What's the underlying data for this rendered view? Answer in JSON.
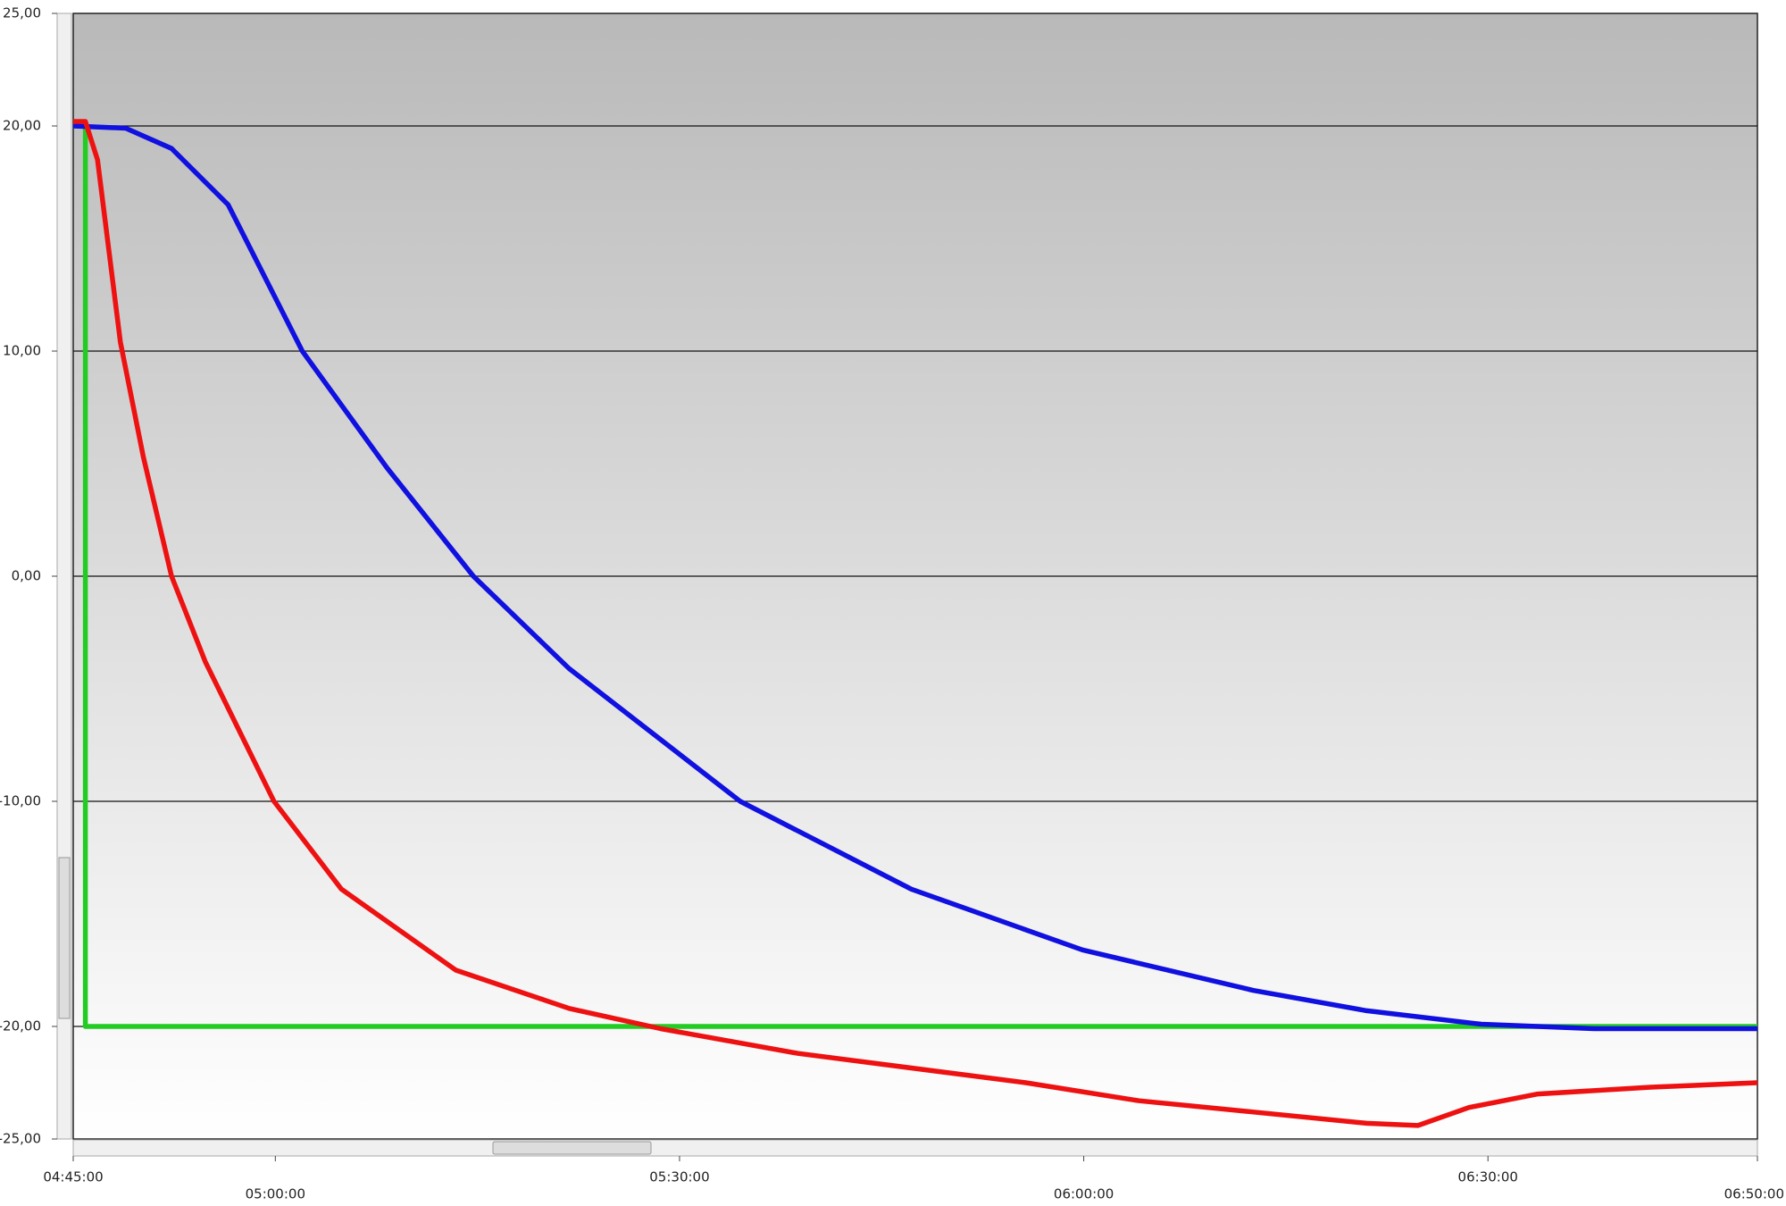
{
  "chart_data": {
    "type": "line",
    "xlim": [
      285,
      410
    ],
    "xticks": [
      {
        "value": 285,
        "label": "04:45:00"
      },
      {
        "value": 300,
        "label": "05:00:00"
      },
      {
        "value": 330,
        "label": "05:30:00"
      },
      {
        "value": 360,
        "label": "06:00:00"
      },
      {
        "value": 390,
        "label": "06:30:00"
      },
      {
        "value": 410,
        "label": "06:50:00"
      }
    ],
    "ylim": [
      -25,
      25
    ],
    "yticks": [
      {
        "value": 25,
        "label": "25,00"
      },
      {
        "value": 20,
        "label": "20,00"
      },
      {
        "value": 10,
        "label": "10,00"
      },
      {
        "value": 0,
        "label": "0,00"
      },
      {
        "value": -10,
        "label": "-10,00"
      },
      {
        "value": -20,
        "label": "-20,00"
      },
      {
        "value": -25,
        "label": "-25,00"
      }
    ],
    "grid": true,
    "series": [
      {
        "color": "#22cc22",
        "x": [
          285,
          285.9,
          285.9,
          410
        ],
        "values": [
          20,
          20,
          -20,
          -20
        ]
      },
      {
        "color": "#1010e0",
        "x": [
          285,
          288.9,
          292.3,
          296.5,
          302.0,
          308.3,
          314.7,
          321.8,
          334.5,
          347.2,
          359.9,
          372.6,
          381.0,
          389.5,
          397.9,
          410
        ],
        "values": [
          20,
          19.9,
          19.0,
          16.5,
          10,
          4.8,
          0,
          -4.1,
          -10,
          -13.9,
          -16.6,
          -18.4,
          -19.3,
          -19.9,
          -20.1,
          -20.1
        ]
      },
      {
        "color": "#ee1111",
        "x": [
          285,
          285.9,
          286.8,
          288.5,
          290.2,
          292.3,
          294.8,
          299.9,
          304.9,
          313.4,
          321.8,
          328.6,
          338.8,
          355.7,
          364.1,
          372.6,
          381.0,
          384.8,
          388.6,
          393.7,
          402.1,
          410
        ],
        "values": [
          20.2,
          20.2,
          18.5,
          10.4,
          5.3,
          0,
          -3.8,
          -10,
          -13.9,
          -17.5,
          -19.2,
          -20.1,
          -21.2,
          -22.5,
          -23.3,
          -23.8,
          -24.3,
          -24.4,
          -23.6,
          -23.0,
          -22.7,
          -22.5
        ]
      }
    ]
  }
}
